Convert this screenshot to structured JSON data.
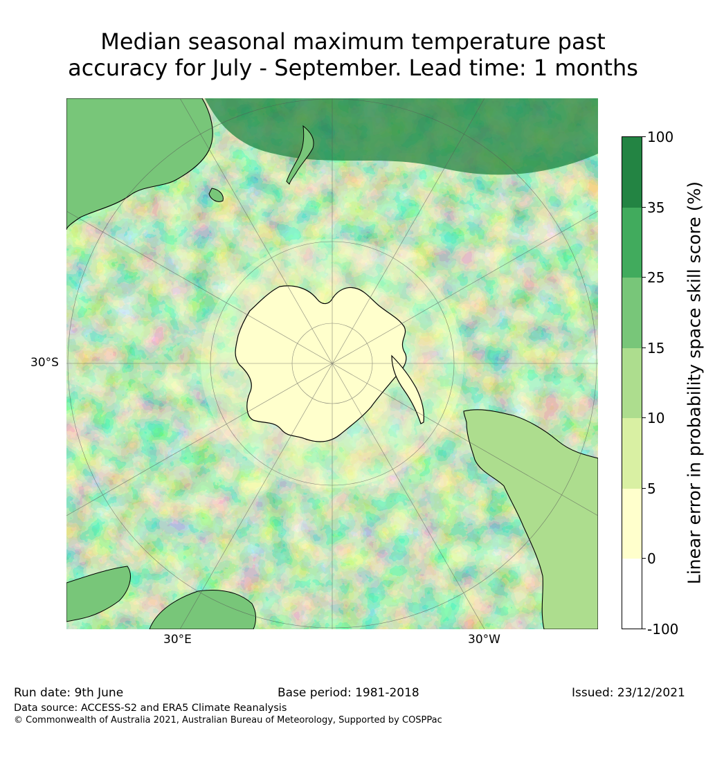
{
  "title_lines": [
    "Median seasonal maximum temperature past",
    "accuracy for July - September. Lead time: 1 months"
  ],
  "map": {
    "projection": "south-polar-stereographic",
    "lat_label": "30°S",
    "lon_labels": [
      "30°E",
      "30°W"
    ],
    "ocean_colors": {
      "dark": "#238443",
      "mid": "#41ab5d",
      "light": "#78c679",
      "pale": "#addd8e",
      "paler": "#d9f0a3",
      "cream": "#ffffcc",
      "white": "#ffffff"
    }
  },
  "colorbar": {
    "title": "Linear error in probability space skill score (%)",
    "tick_labels": [
      "100",
      "35",
      "25",
      "15",
      "10",
      "5",
      "0",
      "-100"
    ],
    "colors": [
      "#238443",
      "#41ab5d",
      "#78c679",
      "#addd8e",
      "#d9f0a3",
      "#ffffcc",
      "#ffffff"
    ]
  },
  "footer": {
    "run_date": "Run date: 9th June",
    "base_period": "Base period: 1981-2018",
    "issued": "Issued: 23/12/2021",
    "data_source": "Data source: ACCESS-S2 and ERA5 Climate Reanalysis",
    "copyright": "© Commonwealth of Australia 2021, Australian Bureau of Meteorology, Supported by COSPPac"
  }
}
